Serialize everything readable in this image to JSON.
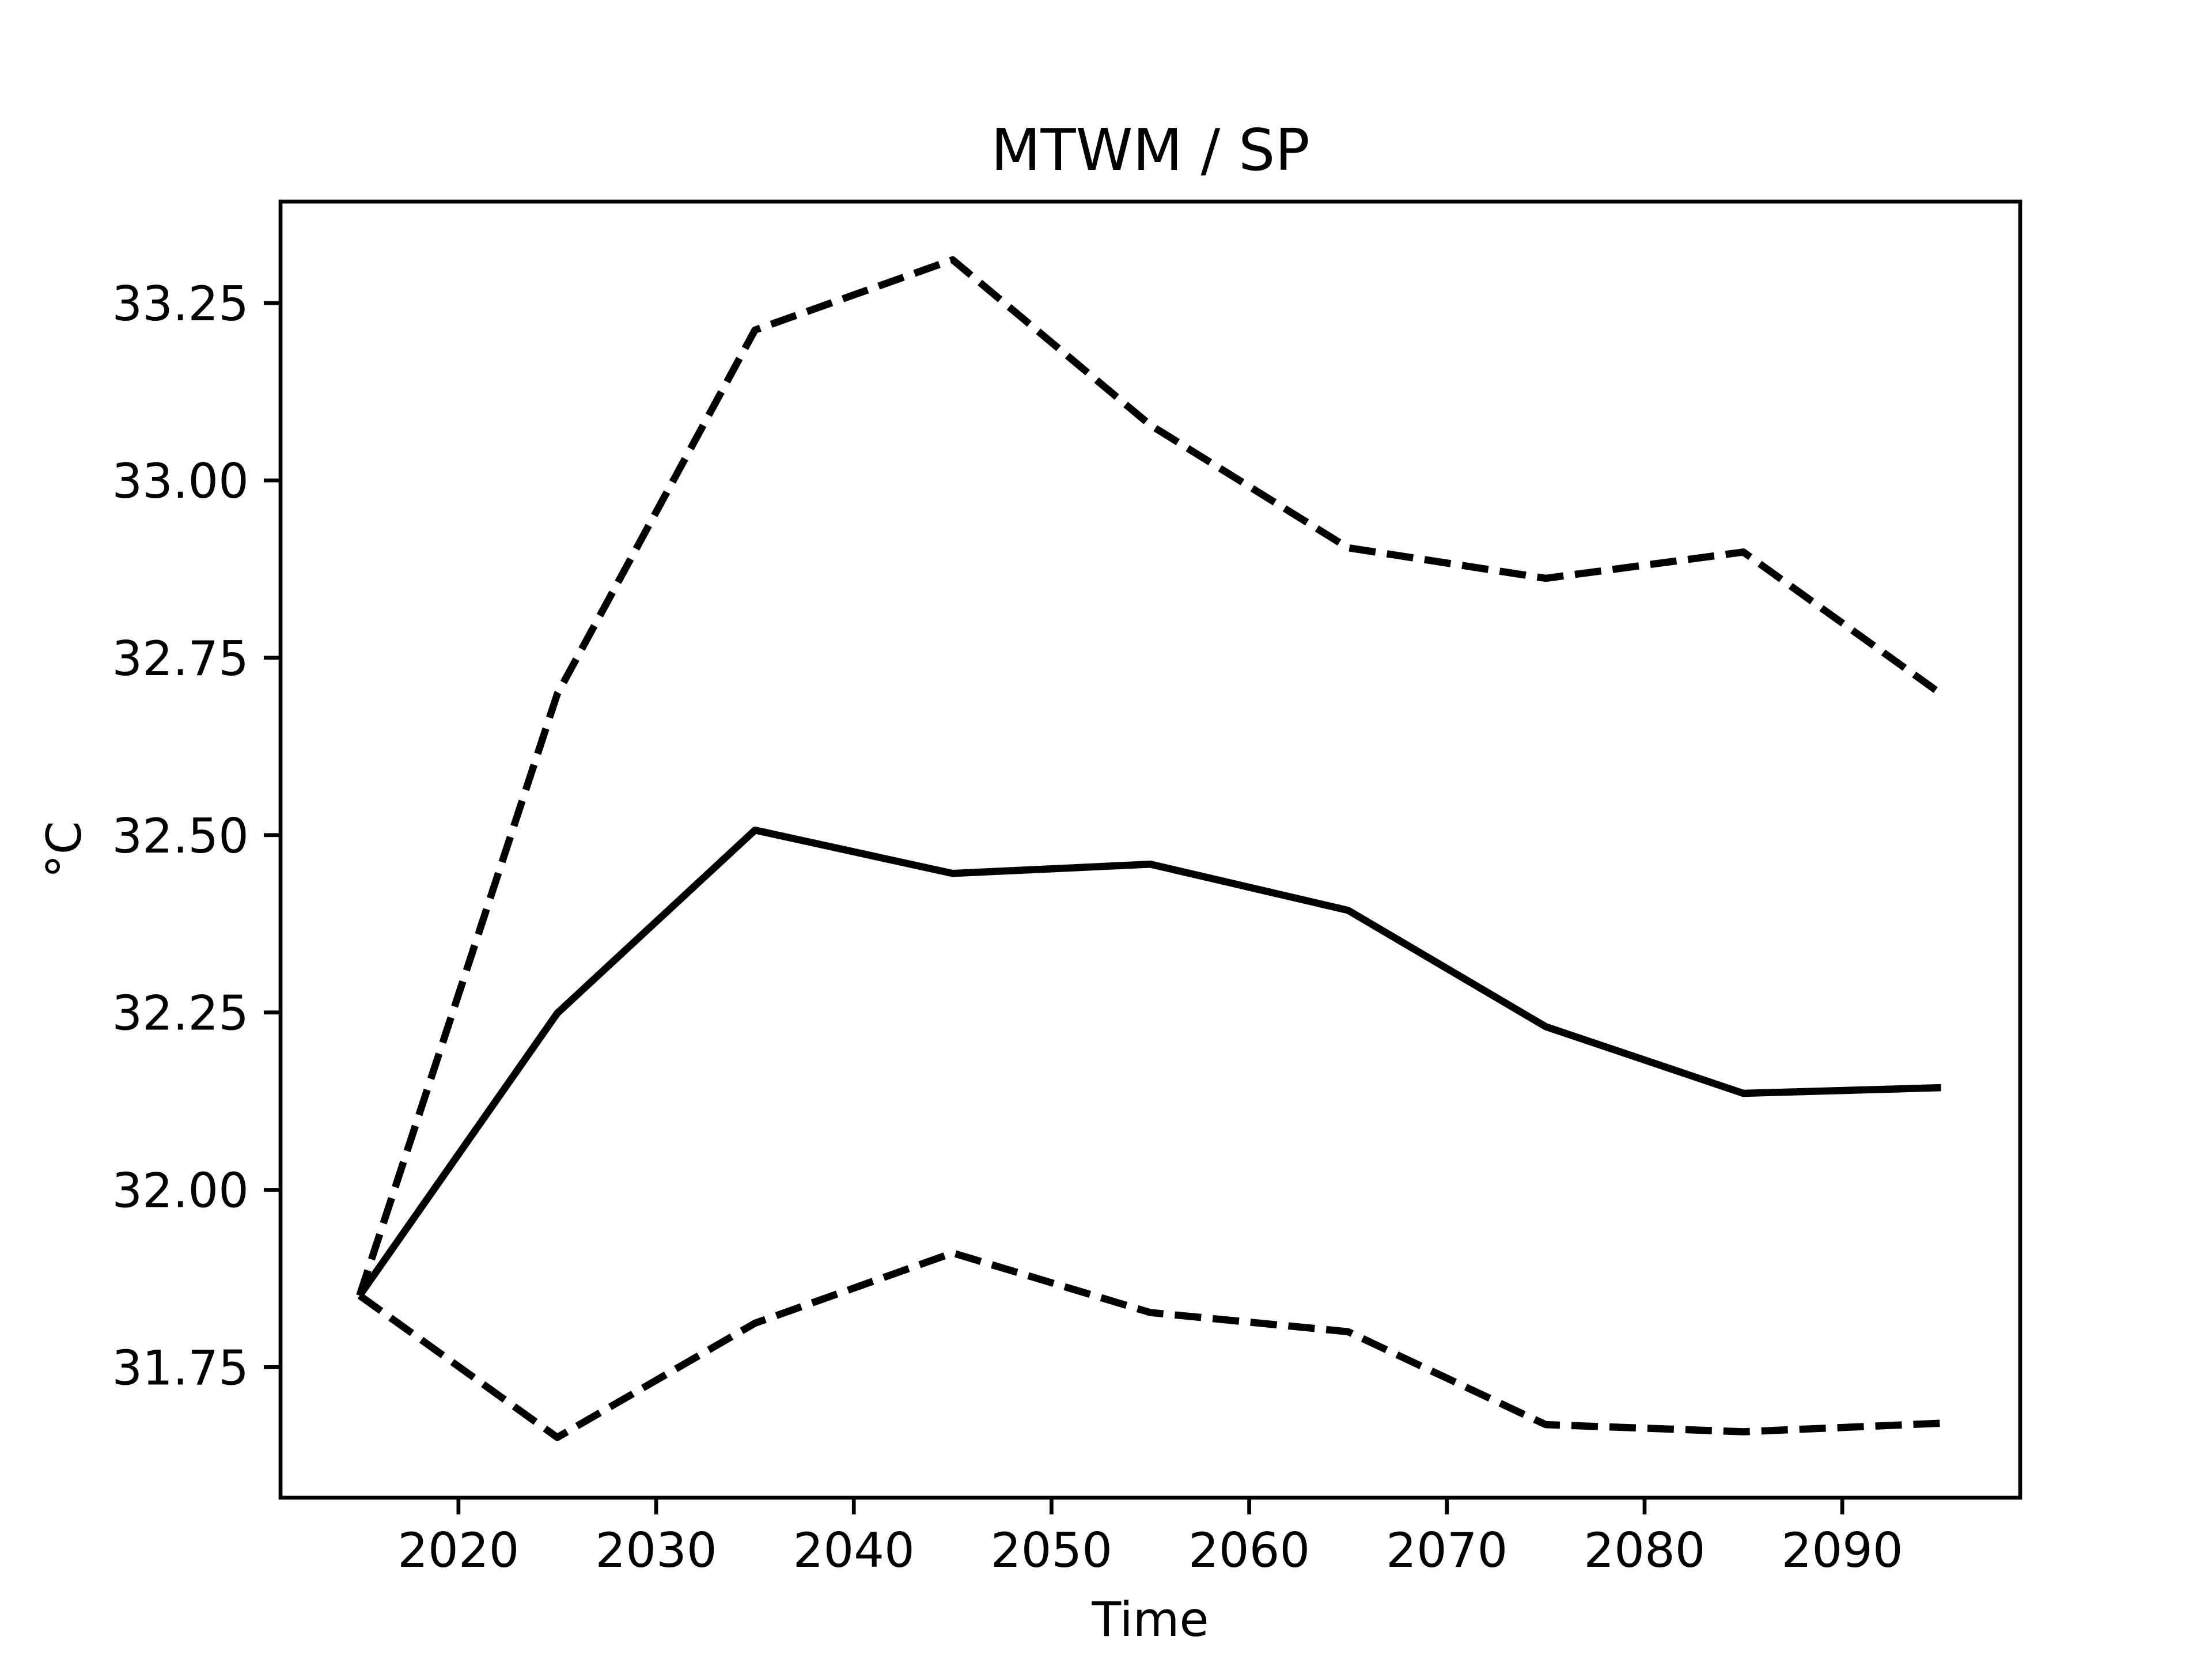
{
  "chart_data": {
    "type": "line",
    "title": "MTWM / SP",
    "x_label": "Time",
    "y_label": "°C",
    "x": [
      2015,
      2025,
      2035,
      2045,
      2055,
      2065,
      2075,
      2085,
      2095
    ],
    "series": [
      {
        "color": "#000000",
        "linestyle": "solid",
        "values": [
          31.851,
          32.249,
          32.507,
          32.446,
          32.459,
          32.394,
          32.23,
          32.136,
          32.144
        ]
      },
      {
        "color": "#000000",
        "linestyle": "dashed",
        "values": [
          31.851,
          32.699,
          33.212,
          33.311,
          33.078,
          32.905,
          32.862,
          32.899,
          32.699
        ]
      },
      {
        "color": "#000000",
        "linestyle": "dashed",
        "values": [
          31.851,
          31.651,
          31.812,
          31.911,
          31.827,
          31.8,
          31.669,
          31.659,
          31.671
        ]
      }
    ],
    "xlim": [
      2011,
      2099
    ],
    "xticks": [
      2020,
      2030,
      2040,
      2050,
      2060,
      2070,
      2080,
      2090
    ],
    "ylim": [
      31.566,
      33.393
    ],
    "yticks": [
      31.75,
      {
        "value": 32,
        "label": "32.00"
      },
      32.25,
      {
        "value": 32.5,
        "label": "32.50"
      },
      32.75,
      {
        "value": 33,
        "label": "33.00"
      },
      33.25
    ],
    "grid": false
  }
}
